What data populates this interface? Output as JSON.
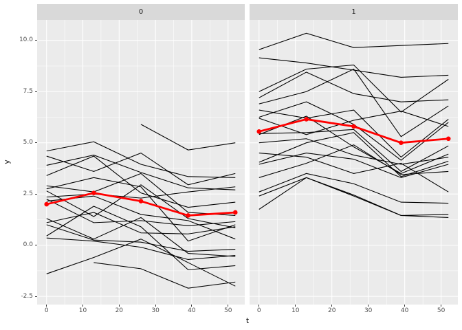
{
  "chart_data": {
    "type": "line",
    "description": "Faceted spaghetti plot of individual trajectories (black) with group mean line (red) per facet",
    "xlabel": "t",
    "ylabel": "y",
    "legend": "none",
    "grid": true,
    "t": [
      0,
      13,
      26,
      39,
      52
    ],
    "x_ticks": [
      0,
      10,
      20,
      30,
      40,
      50
    ],
    "y_ticks": [
      "10.0",
      "7.5",
      "5.0",
      "2.5",
      "0.0",
      "-2.5"
    ],
    "y_tick_values": [
      10,
      7.5,
      5,
      2.5,
      0,
      -2.5
    ],
    "x_minor": [
      5,
      15,
      25,
      35,
      45
    ],
    "y_minor": [
      8.75,
      6.25,
      3.75,
      1.25,
      -1.25
    ],
    "x_domain": [
      -2.6,
      54.6
    ],
    "y_domain": [
      -2.9,
      11.0
    ],
    "colors": {
      "line": "#000000",
      "mean": "#FF0000",
      "panel_bg": "#EBEBEB",
      "strip_bg": "#D9D9D9",
      "grid": "#FFFFFF",
      "tick": "#333333",
      "axis_text": "#4D4D4D"
    },
    "facets": [
      {
        "label": "0",
        "mean": [
          2.0,
          2.55,
          2.15,
          1.45,
          1.6
        ],
        "series": [
          [
            4.6,
            5.05,
            3.95,
            3.35,
            3.3
          ],
          [
            4.35,
            3.6,
            4.5,
            2.95,
            3.5
          ],
          [
            3.9,
            4.4,
            3.55,
            2.8,
            2.7
          ],
          [
            3.4,
            4.35,
            2.55,
            1.85,
            2.1
          ],
          [
            2.9,
            2.6,
            3.5,
            1.6,
            1.45
          ],
          [
            2.75,
            3.3,
            2.85,
            0.2,
            1.0
          ],
          [
            2.65,
            1.4,
            2.95,
            1.3,
            0.85
          ],
          [
            2.35,
            2.5,
            2.3,
            2.6,
            2.85
          ],
          [
            2.25,
            1.1,
            1.2,
            0.95,
            1.15
          ],
          [
            2.15,
            2.4,
            1.5,
            1.2,
            0.3
          ],
          [
            1.3,
            0.3,
            1.35,
            -0.4,
            -0.55
          ],
          [
            1.1,
            1.6,
            0.6,
            0.55,
            0.9
          ],
          [
            1.0,
            0.25,
            0.15,
            -0.3,
            -0.2
          ],
          [
            0.45,
            1.9,
            0.9,
            -1.2,
            -1.0
          ],
          [
            0.35,
            0.2,
            -0.1,
            -0.7,
            -0.5
          ],
          [
            -1.4,
            -0.6,
            0.3,
            -0.85,
            -2.0
          ],
          [
            null,
            -0.85,
            -1.15,
            -2.1,
            -1.8
          ],
          [
            null,
            null,
            5.9,
            4.65,
            5.0
          ]
        ]
      },
      {
        "label": "1",
        "mean": [
          5.55,
          6.15,
          5.8,
          5.0,
          5.2
        ],
        "series": [
          [
            9.55,
            10.35,
            9.65,
            9.75,
            9.85
          ],
          [
            9.15,
            8.9,
            8.55,
            8.2,
            8.3
          ],
          [
            7.5,
            8.6,
            8.8,
            6.5,
            8.1
          ],
          [
            7.2,
            8.45,
            7.4,
            7.0,
            7.1
          ],
          [
            6.9,
            7.5,
            8.6,
            5.3,
            6.8
          ],
          [
            6.6,
            6.2,
            6.6,
            4.3,
            6.15
          ],
          [
            6.25,
            7.0,
            5.9,
            4.15,
            6.0
          ],
          [
            6.2,
            5.4,
            6.1,
            6.55,
            5.8
          ],
          [
            5.45,
            5.5,
            5.65,
            3.6,
            4.85
          ],
          [
            5.4,
            6.3,
            4.8,
            3.5,
            4.45
          ],
          [
            5.0,
            5.2,
            4.4,
            3.95,
            4.3
          ],
          [
            4.05,
            5.0,
            5.5,
            3.35,
            4.1
          ],
          [
            3.95,
            4.5,
            4.2,
            3.3,
            3.95
          ],
          [
            3.3,
            4.0,
            4.9,
            3.45,
            3.6
          ],
          [
            2.6,
            3.5,
            3.0,
            2.1,
            2.05
          ],
          [
            2.4,
            3.3,
            2.45,
            1.45,
            1.5
          ],
          [
            1.75,
            3.3,
            2.4,
            1.45,
            1.35
          ],
          [
            4.5,
            4.3,
            3.5,
            4.0,
            2.6
          ]
        ]
      }
    ]
  }
}
